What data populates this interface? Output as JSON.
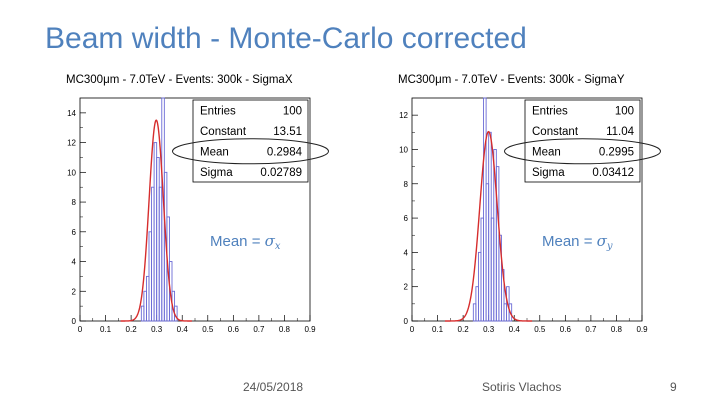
{
  "slide": {
    "title": "Beam width - Monte-Carlo corrected",
    "footer": {
      "date": "24/05/2018",
      "author": "Sotiris Vlachos",
      "page": "9"
    }
  },
  "colors": {
    "title": "#4f81bd",
    "histogram": "#6b6bd6",
    "fit": "#d62d2d",
    "annotation": "#4f81bd",
    "ellipse": "#222222"
  },
  "chart_data": [
    {
      "type": "histogram",
      "title": "MC300μm - 7.0TeV - Events: 300k - SigmaX",
      "xlim": [
        0.0,
        0.9
      ],
      "ylim": [
        0,
        15
      ],
      "xticks": [
        0,
        0.1,
        0.2,
        0.3,
        0.4,
        0.5,
        0.6,
        0.7,
        0.8,
        0.9
      ],
      "xtick_labels": [
        "0",
        "0.1",
        "0.2",
        "0.3",
        "0.4",
        "0.5",
        "0.6",
        "0.7",
        "0.8",
        "0.9"
      ],
      "yticks": [
        0,
        2,
        4,
        6,
        8,
        10,
        12,
        14
      ],
      "ytick_labels": [
        "0",
        "2",
        "4",
        "6",
        "8",
        "10",
        "12",
        "14"
      ],
      "bin_width": 0.01,
      "bins": [
        [
          0.24,
          1
        ],
        [
          0.25,
          2
        ],
        [
          0.26,
          3
        ],
        [
          0.27,
          6
        ],
        [
          0.28,
          9
        ],
        [
          0.29,
          12
        ],
        [
          0.3,
          11
        ],
        [
          0.31,
          9
        ],
        [
          0.32,
          15
        ],
        [
          0.33,
          10
        ],
        [
          0.34,
          7
        ],
        [
          0.35,
          4
        ],
        [
          0.36,
          2
        ],
        [
          0.37,
          1
        ]
      ],
      "fit": {
        "constant": 13.51,
        "mean": 0.2984,
        "sigma": 0.02789
      },
      "stats": [
        {
          "label": "Entries",
          "value": "100"
        },
        {
          "label": "Constant",
          "value": "13.51"
        },
        {
          "label": "Mean",
          "value": "0.2984"
        },
        {
          "label": "Sigma",
          "value": "0.02789"
        }
      ],
      "highlighted_stat": "Mean",
      "annotation": {
        "prefix": "Mean = ",
        "symbol": "σ",
        "subscript": "x"
      }
    },
    {
      "type": "histogram",
      "title": "MC300μm - 7.0TeV - Events: 300k - SigmaY",
      "xlim": [
        0.0,
        0.9
      ],
      "ylim": [
        0,
        13
      ],
      "xticks": [
        0,
        0.1,
        0.2,
        0.3,
        0.4,
        0.5,
        0.6,
        0.7,
        0.8,
        0.9
      ],
      "xtick_labels": [
        "0",
        "0.1",
        "0.2",
        "0.3",
        "0.4",
        "0.5",
        "0.6",
        "0.7",
        "0.8",
        "0.9"
      ],
      "yticks": [
        0,
        2,
        4,
        6,
        8,
        10,
        12
      ],
      "ytick_labels": [
        "0",
        "2",
        "4",
        "6",
        "8",
        "10",
        "12"
      ],
      "bin_width": 0.01,
      "bins": [
        [
          0.24,
          1
        ],
        [
          0.25,
          2
        ],
        [
          0.26,
          4
        ],
        [
          0.27,
          6
        ],
        [
          0.28,
          13
        ],
        [
          0.29,
          8
        ],
        [
          0.3,
          11
        ],
        [
          0.31,
          6
        ],
        [
          0.32,
          10
        ],
        [
          0.33,
          9
        ],
        [
          0.34,
          5
        ],
        [
          0.35,
          3
        ],
        [
          0.36,
          1
        ],
        [
          0.37,
          2
        ],
        [
          0.38,
          1
        ]
      ],
      "fit": {
        "constant": 11.04,
        "mean": 0.2995,
        "sigma": 0.03412
      },
      "stats": [
        {
          "label": "Entries",
          "value": "100"
        },
        {
          "label": "Constant",
          "value": "11.04"
        },
        {
          "label": "Mean",
          "value": "0.2995"
        },
        {
          "label": "Sigma",
          "value": "0.03412"
        }
      ],
      "highlighted_stat": "Mean",
      "annotation": {
        "prefix": "Mean = ",
        "symbol": "σ",
        "subscript": "y"
      }
    }
  ]
}
